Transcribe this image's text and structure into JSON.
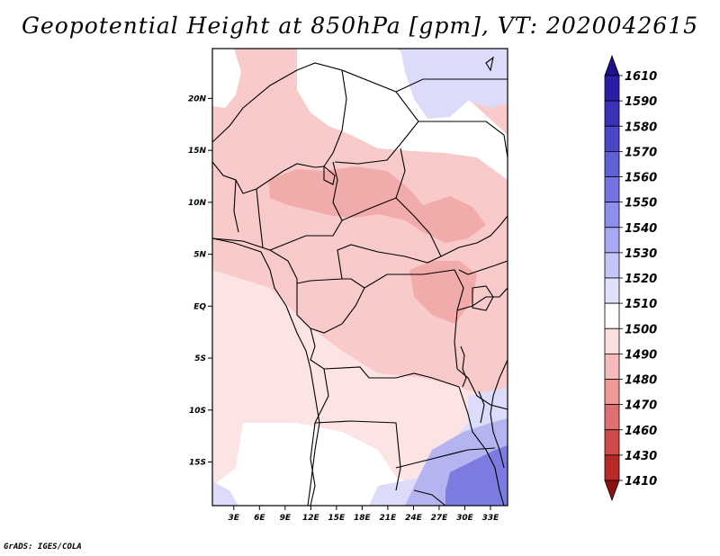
{
  "title": "Geopotential Height at 850hPa [gpm], VT: 2020042615",
  "credit": "GrADS: IGES/COLA",
  "map": {
    "lat_labels": [
      "20N",
      "15N",
      "10N",
      "5N",
      "EQ",
      "5S",
      "10S",
      "15S"
    ],
    "lat_values": [
      20,
      15,
      10,
      5,
      0,
      -5,
      -10,
      -15
    ],
    "lon_labels": [
      "3E",
      "6E",
      "9E",
      "12E",
      "15E",
      "18E",
      "21E",
      "24E",
      "27E",
      "30E",
      "33E"
    ],
    "lon_values": [
      3,
      6,
      9,
      12,
      15,
      18,
      21,
      24,
      27,
      30,
      33
    ],
    "lat_range": [
      -19.2,
      24.8
    ],
    "lon_range": [
      0.5,
      35
    ]
  },
  "colorbar": {
    "levels": [
      "1610",
      "1590",
      "1580",
      "1570",
      "1560",
      "1550",
      "1540",
      "1530",
      "1520",
      "1510",
      "1500",
      "1490",
      "1480",
      "1470",
      "1460",
      "1430",
      "1410"
    ],
    "colors": [
      "#1e0f8e",
      "#2b1ea6",
      "#3a32b8",
      "#4a48c8",
      "#5e60d6",
      "#7474e2",
      "#8e8eec",
      "#a8a8f2",
      "#c4c6f8",
      "#e0e2fb",
      "#ffffff",
      "#fce0e0",
      "#f6bcbc",
      "#ee9898",
      "#e07070",
      "#d04a4a",
      "#b82a2a",
      "#8e1010"
    ]
  },
  "field_colors": {
    "white": "#ffffff",
    "lightblue": "#dcdcfa",
    "midblue": "#b4b4f0",
    "darkblue": "#7c7ce0",
    "pale": "#fde4e4",
    "pink": "#f8caca",
    "rose": "#f2abab"
  }
}
